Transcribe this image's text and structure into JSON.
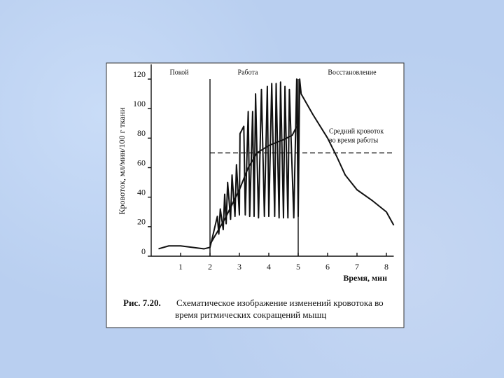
{
  "chart_data": {
    "type": "line",
    "phases": [
      "Покой",
      "Работа",
      "Восстановление"
    ],
    "phase_lines": [
      2,
      5
    ],
    "y_label": "Кровоток, мл/мин/100 г ткани",
    "x_label": "Время, мин",
    "xlim": [
      0,
      8.25
    ],
    "ylim": [
      0,
      120
    ],
    "xticks": [
      1,
      2,
      3,
      4,
      5,
      6,
      7,
      8
    ],
    "yticks": [
      0,
      20,
      40,
      60,
      80,
      100,
      120
    ],
    "series": [
      {
        "color": "#111111",
        "x": [
          0.25,
          0.6,
          1.0,
          1.4,
          1.8,
          2.0,
          2.05,
          2.25,
          2.3,
          2.35,
          2.45,
          2.5,
          2.55,
          2.6,
          2.7,
          2.75,
          2.85,
          2.9,
          3.0,
          3.02,
          3.15,
          3.2,
          3.3,
          3.35,
          3.45,
          3.5,
          3.55,
          3.65,
          3.75,
          3.85,
          3.95,
          4.0,
          4.1,
          4.2,
          4.25,
          4.35,
          4.4,
          4.5,
          4.55,
          4.65,
          4.7,
          4.85,
          4.95,
          5.0,
          5.05,
          5.1,
          5.5,
          6.0,
          6.3,
          6.6,
          7.0,
          7.5,
          8.0,
          8.25
        ],
        "values": [
          5,
          7,
          7,
          6,
          5,
          6,
          10,
          27,
          15,
          32,
          18,
          42,
          22,
          50,
          25,
          55,
          27,
          62,
          28,
          83,
          88,
          28,
          98,
          27,
          98,
          27,
          110,
          26,
          113,
          27,
          115,
          27,
          117,
          27,
          117,
          26,
          118,
          26,
          115,
          26,
          113,
          26,
          120,
          27,
          120,
          110,
          96,
          80,
          68,
          55,
          45,
          38,
          30,
          21
        ]
      },
      {
        "color": "#111111",
        "x": [
          2.0,
          2.5,
          3.0,
          3.3,
          3.6,
          4.0,
          4.5,
          4.8,
          4.95
        ],
        "values": [
          8,
          25,
          45,
          60,
          70,
          75,
          79,
          82,
          88
        ]
      }
    ],
    "reference_line": {
      "label": [
        "Средний кровоток",
        "во время работы"
      ],
      "value": 70,
      "x": [
        2,
        8.25
      ]
    },
    "caption_label": "Рис. 7.20.",
    "caption": [
      "Схематическое изображение изменений кровотока во",
      "время ритмических сокращений мышц"
    ]
  }
}
